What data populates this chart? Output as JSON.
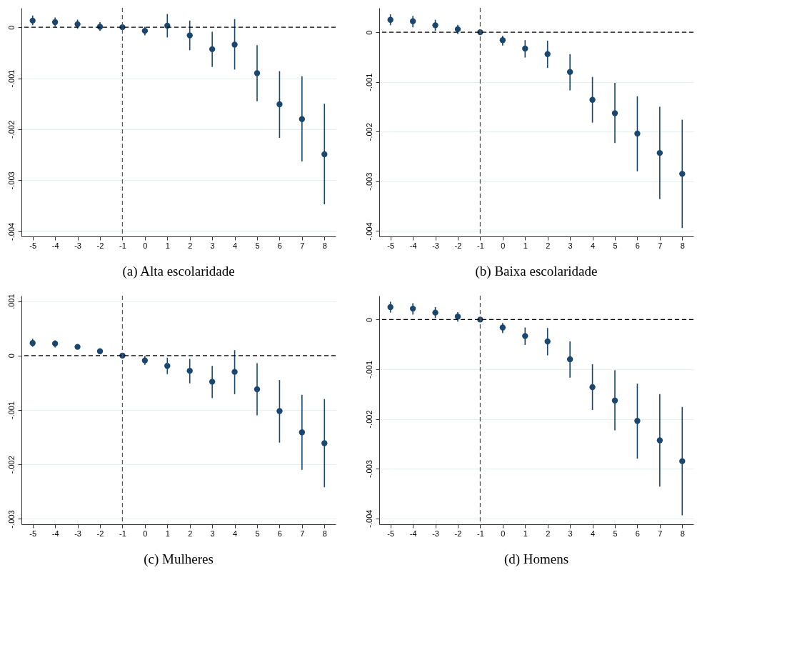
{
  "chart_data": [
    {
      "type": "scatter",
      "title": "(a) Alta escolaridade",
      "x": [
        -5,
        -4,
        -3,
        -2,
        -1,
        0,
        1,
        2,
        3,
        4,
        5,
        6,
        7,
        8
      ],
      "series": [
        {
          "color": "#1a476f",
          "values": [
            0.00013,
            0.0001,
            6e-05,
            1e-05,
            0,
            -7e-05,
            3e-05,
            -0.00016,
            -0.00043,
            -0.00034,
            -0.0009,
            -0.00151,
            -0.0018,
            -0.00249
          ],
          "errors": [
            [
              4e-05,
              0.00023
            ],
            [
              1e-05,
              0.00019
            ],
            [
              -3e-05,
              0.00015
            ],
            [
              -7e-05,
              0.0001
            ],
            null,
            [
              -0.00016,
              1e-05
            ],
            [
              -0.0002,
              0.00026
            ],
            [
              -0.00045,
              0.00013
            ],
            [
              -0.00078,
              -9e-05
            ],
            [
              -0.00083,
              0.00016
            ],
            [
              -0.00145,
              -0.00035
            ],
            [
              -0.00217,
              -0.00086
            ],
            [
              -0.00263,
              -0.00096
            ],
            [
              -0.00347,
              -0.0015
            ]
          ]
        }
      ],
      "xlim": [
        -5.5,
        8.5
      ],
      "xticks": [
        -5,
        -4,
        -3,
        -2,
        -1,
        0,
        1,
        2,
        3,
        4,
        5,
        6,
        7,
        8
      ],
      "ylim": [
        -0.0041,
        0.00038
      ],
      "yticks": [
        {
          "value": 0,
          "label": "0"
        },
        {
          "value": -0.001,
          "label": "-.001"
        },
        {
          "value": -0.002,
          "label": "-.002"
        },
        {
          "value": -0.003,
          "label": "-.003"
        },
        {
          "value": -0.004,
          "label": "-.004"
        }
      ],
      "ref_lines": [
        {
          "axis": "y",
          "value": 0,
          "color": "#000000",
          "line_style": "dashed"
        },
        {
          "axis": "x",
          "value": -1,
          "color": "#555555",
          "line_style": "dashed"
        }
      ],
      "grid": "y",
      "marker": "circle"
    },
    {
      "type": "scatter",
      "title": "(b) Baixa escolaridade",
      "x": [
        -5,
        -4,
        -3,
        -2,
        -1,
        0,
        1,
        2,
        3,
        4,
        5,
        6,
        7,
        8
      ],
      "series": [
        {
          "color": "#1a476f",
          "values": [
            0.00025,
            0.00022,
            0.00014,
            6e-05,
            0,
            -0.00016,
            -0.00033,
            -0.00044,
            -0.0008,
            -0.00136,
            -0.00163,
            -0.00204,
            -0.00243,
            -0.00285
          ],
          "errors": [
            [
              0.00014,
              0.00036
            ],
            [
              0.0001,
              0.00033
            ],
            [
              3e-05,
              0.00025
            ],
            [
              -4e-05,
              0.00015
            ],
            null,
            [
              -0.00027,
              -7e-05
            ],
            [
              -0.00051,
              -0.00016
            ],
            [
              -0.00072,
              -0.00017
            ],
            [
              -0.00117,
              -0.00044
            ],
            [
              -0.00182,
              -0.0009
            ],
            [
              -0.00223,
              -0.00102
            ],
            [
              -0.0028,
              -0.00129
            ],
            [
              -0.00336,
              -0.0015
            ],
            [
              -0.00394,
              -0.00176
            ]
          ]
        }
      ],
      "xlim": [
        -5.5,
        8.5
      ],
      "xticks": [
        -5,
        -4,
        -3,
        -2,
        -1,
        0,
        1,
        2,
        3,
        4,
        5,
        6,
        7,
        8
      ],
      "ylim": [
        -0.00411,
        0.00049
      ],
      "yticks": [
        {
          "value": 0,
          "label": "0"
        },
        {
          "value": -0.001,
          "label": "-.001"
        },
        {
          "value": -0.002,
          "label": "-.002"
        },
        {
          "value": -0.003,
          "label": "-.003"
        },
        {
          "value": -0.004,
          "label": "-.004"
        }
      ],
      "ref_lines": [
        {
          "axis": "y",
          "value": 0,
          "color": "#000000",
          "line_style": "dashed"
        },
        {
          "axis": "x",
          "value": -1,
          "color": "#555555",
          "line_style": "dashed"
        }
      ],
      "grid": "y",
      "marker": "circle"
    },
    {
      "type": "scatter",
      "title": "(c) Mulheres",
      "x": [
        -5,
        -4,
        -3,
        -2,
        -1,
        0,
        1,
        2,
        3,
        4,
        5,
        6,
        7,
        8
      ],
      "series": [
        {
          "color": "#1a476f",
          "values": [
            0.00023,
            0.00022,
            0.00016,
            8e-05,
            0,
            -9e-05,
            -0.00019,
            -0.00028,
            -0.00048,
            -0.0003,
            -0.00062,
            -0.00102,
            -0.00141,
            -0.00161
          ],
          "errors": [
            [
              0.00016,
              0.00031
            ],
            [
              0.00015,
              0.00028
            ],
            [
              0.00014,
              0.00019
            ],
            [
              5e-05,
              0.00011
            ],
            null,
            [
              -0.00017,
              -1e-05
            ],
            [
              -0.00034,
              -4e-05
            ],
            [
              -0.00051,
              -6e-05
            ],
            [
              -0.00078,
              -0.00019
            ],
            [
              -0.00071,
              0.0001
            ],
            [
              -0.0011,
              -0.00014
            ],
            [
              -0.0016,
              -0.00045
            ],
            [
              -0.0021,
              -0.00072
            ],
            [
              -0.00242,
              -0.0008
            ]
          ]
        }
      ],
      "xlim": [
        -5.5,
        8.5
      ],
      "xticks": [
        -5,
        -4,
        -3,
        -2,
        -1,
        0,
        1,
        2,
        3,
        4,
        5,
        6,
        7,
        8
      ],
      "ylim": [
        -0.0031,
        0.0011
      ],
      "yticks": [
        {
          "value": 0.001,
          "label": ".001"
        },
        {
          "value": 0,
          "label": "0"
        },
        {
          "value": -0.001,
          "label": "-.001"
        },
        {
          "value": -0.002,
          "label": "-.002"
        },
        {
          "value": -0.003,
          "label": "-.003"
        }
      ],
      "ref_lines": [
        {
          "axis": "y",
          "value": 0,
          "color": "#000000",
          "line_style": "dashed"
        },
        {
          "axis": "x",
          "value": -1,
          "color": "#555555",
          "line_style": "dashed"
        }
      ],
      "grid": "y",
      "marker": "circle"
    },
    {
      "type": "scatter",
      "title": "(d) Homens",
      "x": [
        -5,
        -4,
        -3,
        -2,
        -1,
        0,
        1,
        2,
        3,
        4,
        5,
        6,
        7,
        8
      ],
      "series": [
        {
          "color": "#1a476f",
          "values": [
            0.00025,
            0.00022,
            0.00014,
            6e-05,
            0,
            -0.00016,
            -0.00033,
            -0.00044,
            -0.0008,
            -0.00136,
            -0.00163,
            -0.00204,
            -0.00243,
            -0.00285
          ],
          "errors": [
            [
              0.00014,
              0.00036
            ],
            [
              0.0001,
              0.00033
            ],
            [
              3e-05,
              0.00025
            ],
            [
              -4e-05,
              0.00015
            ],
            null,
            [
              -0.00027,
              -7e-05
            ],
            [
              -0.00051,
              -0.00016
            ],
            [
              -0.00072,
              -0.00017
            ],
            [
              -0.00117,
              -0.00044
            ],
            [
              -0.00182,
              -0.0009
            ],
            [
              -0.00223,
              -0.00102
            ],
            [
              -0.0028,
              -0.00129
            ],
            [
              -0.00336,
              -0.0015
            ],
            [
              -0.00394,
              -0.00176
            ]
          ]
        }
      ],
      "xlim": [
        -5.5,
        8.5
      ],
      "xticks": [
        -5,
        -4,
        -3,
        -2,
        -1,
        0,
        1,
        2,
        3,
        4,
        5,
        6,
        7,
        8
      ],
      "ylim": [
        -0.00412,
        0.00048
      ],
      "yticks": [
        {
          "value": 0,
          "label": "0"
        },
        {
          "value": -0.001,
          "label": "-.001"
        },
        {
          "value": -0.002,
          "label": "-.002"
        },
        {
          "value": -0.003,
          "label": "-.003"
        },
        {
          "value": -0.004,
          "label": "-.004"
        }
      ],
      "ref_lines": [
        {
          "axis": "y",
          "value": 0,
          "color": "#000000",
          "line_style": "dashed"
        },
        {
          "axis": "x",
          "value": -1,
          "color": "#555555",
          "line_style": "dashed"
        }
      ],
      "grid": "y",
      "marker": "circle"
    }
  ]
}
